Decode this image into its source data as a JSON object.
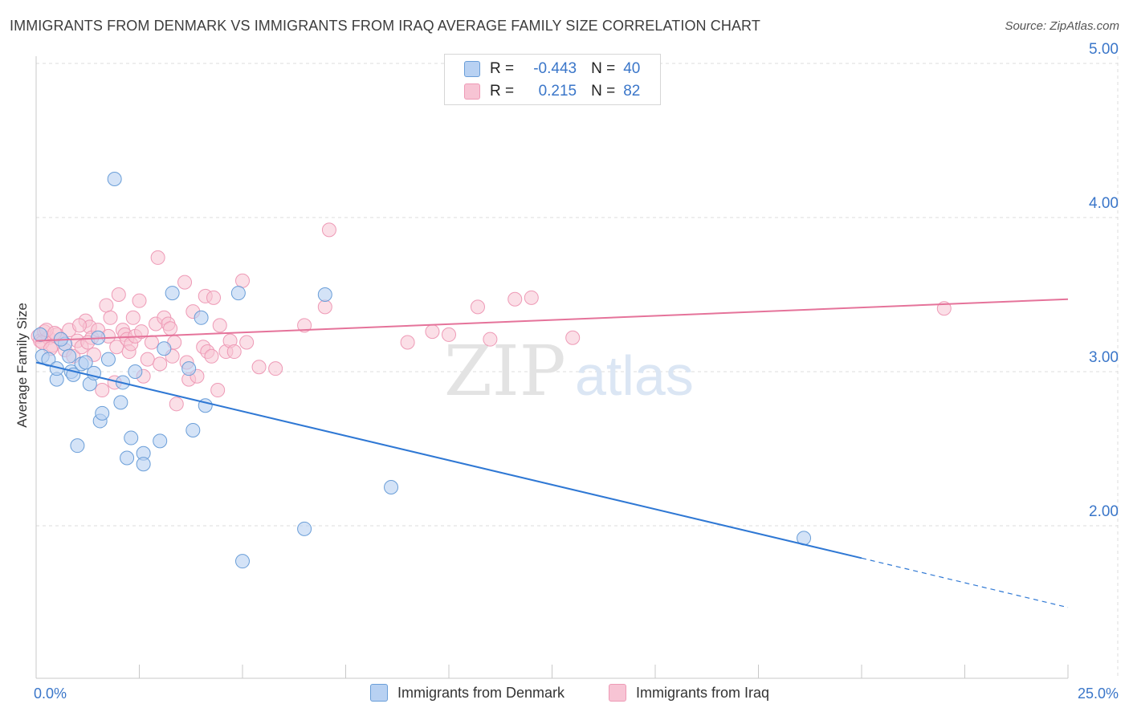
{
  "title": "IMMIGRANTS FROM DENMARK VS IMMIGRANTS FROM IRAQ AVERAGE FAMILY SIZE CORRELATION CHART",
  "source": "Source: ZipAtlas.com",
  "watermark": {
    "zip": "ZIP",
    "atlas": "atlas"
  },
  "legend": {
    "r_label": "R =",
    "n_label": "N =",
    "rows": [
      {
        "r": "-0.443",
        "n": "40",
        "color": "#7eaee8"
      },
      {
        "r": "0.215",
        "n": "82",
        "color": "#f2a0bb"
      }
    ]
  },
  "bottom_legend": [
    "Immigrants from Denmark",
    "Immigrants from Iraq"
  ],
  "colors": {
    "blue_fill": "#b8d1f2",
    "blue_stroke": "#6a9ed8",
    "blue_line": "#2f78d4",
    "pink_fill": "#f7c4d4",
    "pink_stroke": "#ee9ab6",
    "pink_line": "#e5739a",
    "tick_text": "#3a76c9",
    "grid": "#dcdcdc"
  },
  "chart_data": {
    "type": "scatter",
    "title": "IMMIGRANTS FROM DENMARK VS IMMIGRANTS FROM IRAQ AVERAGE FAMILY SIZE CORRELATION CHART",
    "xlabel": "",
    "ylabel": "Average Family Size",
    "xlim": [
      0,
      25
    ],
    "ylim": [
      1.0,
      5.25
    ],
    "x_tick_labels": [
      "0.0%",
      "25.0%"
    ],
    "y_ticks": [
      2.0,
      3.0,
      4.0,
      5.0
    ],
    "y_tick_labels": [
      "2.00",
      "3.00",
      "4.00",
      "5.00"
    ],
    "grid": true,
    "legend_position": "top-center",
    "series": [
      {
        "name": "Immigrants from Denmark",
        "r": -0.443,
        "n": 40,
        "points": [
          [
            0.1,
            3.24
          ],
          [
            0.15,
            3.1
          ],
          [
            0.3,
            3.08
          ],
          [
            0.5,
            2.95
          ],
          [
            0.5,
            3.02
          ],
          [
            0.7,
            3.18
          ],
          [
            0.8,
            3.1
          ],
          [
            0.85,
            3.0
          ],
          [
            0.9,
            2.98
          ],
          [
            1.0,
            2.52
          ],
          [
            1.1,
            3.05
          ],
          [
            1.2,
            3.06
          ],
          [
            1.3,
            2.92
          ],
          [
            1.4,
            2.99
          ],
          [
            1.5,
            3.22
          ],
          [
            1.55,
            2.68
          ],
          [
            1.6,
            2.73
          ],
          [
            1.75,
            3.08
          ],
          [
            1.9,
            4.25
          ],
          [
            2.05,
            2.8
          ],
          [
            2.1,
            2.93
          ],
          [
            2.2,
            2.44
          ],
          [
            2.3,
            2.57
          ],
          [
            2.4,
            3.0
          ],
          [
            2.6,
            2.47
          ],
          [
            2.6,
            2.4
          ],
          [
            3.0,
            2.55
          ],
          [
            3.1,
            3.15
          ],
          [
            3.3,
            3.51
          ],
          [
            3.7,
            3.02
          ],
          [
            3.8,
            2.62
          ],
          [
            4.0,
            3.35
          ],
          [
            4.1,
            2.78
          ],
          [
            4.9,
            3.51
          ],
          [
            5.0,
            1.77
          ],
          [
            6.5,
            1.98
          ],
          [
            7.0,
            3.5
          ],
          [
            8.6,
            2.25
          ],
          [
            18.6,
            1.92
          ],
          [
            0.6,
            3.21
          ]
        ],
        "trend": {
          "x0": 0,
          "y0": 3.06,
          "x1": 20.0,
          "y1": 1.79,
          "dashed_to_x": 25,
          "dashed_to_y": 1.47
        }
      },
      {
        "name": "Immigrants from Iraq",
        "r": 0.215,
        "n": 82,
        "points": [
          [
            0.05,
            3.23
          ],
          [
            0.1,
            3.2
          ],
          [
            0.2,
            3.26
          ],
          [
            0.3,
            3.22
          ],
          [
            0.4,
            3.17
          ],
          [
            0.5,
            3.24
          ],
          [
            0.6,
            3.21
          ],
          [
            0.7,
            3.14
          ],
          [
            0.8,
            3.27
          ],
          [
            0.9,
            3.1
          ],
          [
            1.0,
            3.2
          ],
          [
            1.1,
            3.16
          ],
          [
            1.2,
            3.33
          ],
          [
            1.3,
            3.29
          ],
          [
            1.35,
            3.22
          ],
          [
            1.4,
            3.11
          ],
          [
            1.5,
            3.27
          ],
          [
            1.6,
            2.88
          ],
          [
            1.7,
            3.43
          ],
          [
            1.75,
            3.23
          ],
          [
            1.8,
            3.35
          ],
          [
            1.9,
            2.93
          ],
          [
            1.95,
            3.16
          ],
          [
            2.0,
            3.5
          ],
          [
            2.1,
            3.27
          ],
          [
            2.15,
            3.24
          ],
          [
            2.2,
            3.21
          ],
          [
            2.25,
            3.13
          ],
          [
            2.3,
            3.18
          ],
          [
            2.4,
            3.23
          ],
          [
            2.5,
            3.46
          ],
          [
            2.55,
            3.26
          ],
          [
            2.6,
            2.97
          ],
          [
            2.7,
            3.08
          ],
          [
            2.8,
            3.19
          ],
          [
            2.9,
            3.31
          ],
          [
            2.95,
            3.74
          ],
          [
            3.1,
            3.35
          ],
          [
            3.2,
            3.31
          ],
          [
            3.25,
            3.28
          ],
          [
            3.3,
            3.1
          ],
          [
            3.35,
            3.19
          ],
          [
            3.4,
            2.79
          ],
          [
            3.6,
            3.58
          ],
          [
            3.65,
            3.06
          ],
          [
            3.7,
            2.95
          ],
          [
            3.8,
            3.39
          ],
          [
            3.9,
            2.97
          ],
          [
            4.05,
            3.16
          ],
          [
            4.1,
            3.49
          ],
          [
            4.15,
            3.13
          ],
          [
            4.3,
            3.48
          ],
          [
            4.4,
            2.88
          ],
          [
            4.45,
            3.3
          ],
          [
            4.6,
            3.13
          ],
          [
            4.7,
            3.2
          ],
          [
            4.8,
            3.13
          ],
          [
            5.0,
            3.59
          ],
          [
            5.1,
            3.19
          ],
          [
            5.4,
            3.03
          ],
          [
            5.8,
            3.02
          ],
          [
            6.5,
            3.3
          ],
          [
            7.0,
            3.42
          ],
          [
            7.1,
            3.92
          ],
          [
            9.0,
            3.19
          ],
          [
            9.6,
            3.26
          ],
          [
            10.0,
            3.24
          ],
          [
            10.7,
            3.42
          ],
          [
            11.0,
            3.21
          ],
          [
            11.6,
            3.47
          ],
          [
            12.0,
            3.48
          ],
          [
            13.0,
            3.22
          ],
          [
            22.0,
            3.41
          ],
          [
            0.15,
            3.19
          ],
          [
            0.25,
            3.27
          ],
          [
            0.35,
            3.15
          ],
          [
            0.45,
            3.25
          ],
          [
            1.05,
            3.3
          ],
          [
            2.35,
            3.35
          ],
          [
            3.0,
            3.05
          ],
          [
            4.25,
            3.1
          ],
          [
            1.25,
            3.19
          ]
        ],
        "trend": {
          "x0": 0,
          "y0": 3.2,
          "x1": 25,
          "y1": 3.47
        }
      }
    ]
  }
}
